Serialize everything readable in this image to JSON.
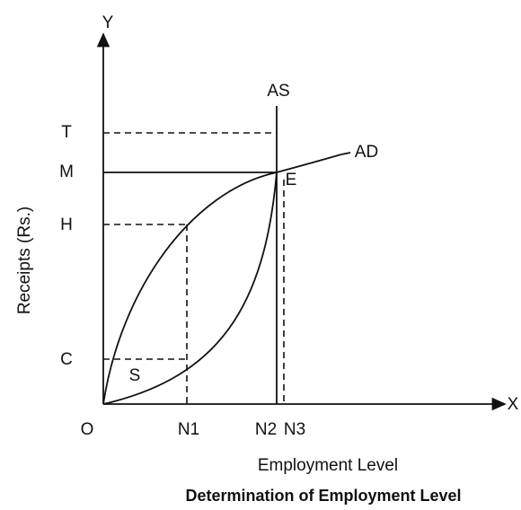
{
  "axes": {
    "y": "Y",
    "x": "X",
    "origin": "O",
    "y_label": "Receipts (Rs.)",
    "x_label": "Employment Level"
  },
  "y_points": [
    "T",
    "M",
    "H",
    "C"
  ],
  "x_points": [
    "N1",
    "N2",
    "N3"
  ],
  "curves": {
    "supply": "AS",
    "demand": "AD",
    "equilibrium": "E",
    "start": "S"
  },
  "caption": "Determination of Employment Level"
}
